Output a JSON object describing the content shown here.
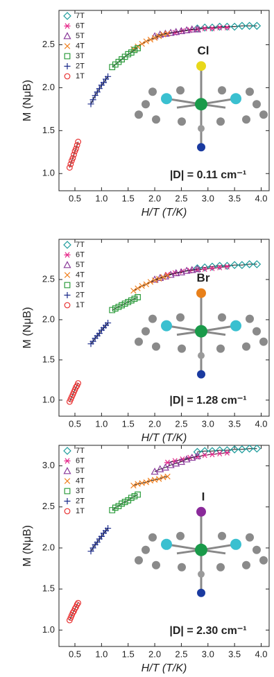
{
  "chart_data": [
    {
      "type": "scatter",
      "xlabel": "H/T (T/K)",
      "ylabel": "M (NμB)",
      "xlim": [
        0.2,
        4.15
      ],
      "ylim": [
        0.8,
        2.9
      ],
      "xticks": [
        0.5,
        {
          "value": 1,
          "label": "1.0"
        },
        1.5,
        {
          "value": 2,
          "label": "2.0"
        },
        2.5,
        {
          "value": 3,
          "label": "3.0"
        },
        3.5,
        {
          "value": 4,
          "label": "4.0"
        }
      ],
      "yticks": [
        {
          "value": 1,
          "label": "1.0"
        },
        1.5,
        {
          "value": 2,
          "label": "2.0"
        },
        2.5
      ],
      "annotations": [
        "Cl",
        "|D| = 0.11 cm⁻¹"
      ],
      "series": [
        {
          "name": "7T",
          "color": "#1a9a9a",
          "marker": "diamond",
          "x": [
            2.8,
            2.94,
            3.08,
            3.22,
            3.36,
            3.5,
            3.64,
            3.78,
            3.92
          ],
          "values": [
            2.69,
            2.7,
            2.7,
            2.71,
            2.71,
            2.71,
            2.72,
            2.72,
            2.72
          ]
        },
        {
          "name": "6T",
          "color": "#e6288a",
          "marker": "asterisk",
          "x": [
            2.24,
            2.38,
            2.52,
            2.66,
            2.8,
            2.94,
            3.08,
            3.22,
            3.36
          ],
          "values": [
            2.63,
            2.64,
            2.66,
            2.67,
            2.68,
            2.69,
            2.69,
            2.7,
            2.7
          ]
        },
        {
          "name": "5T",
          "color": "#8a3a9a",
          "marker": "triangle",
          "x": [
            2.0,
            2.1,
            2.2,
            2.3,
            2.4,
            2.5,
            2.6,
            2.7,
            2.8
          ],
          "values": [
            2.6,
            2.62,
            2.63,
            2.64,
            2.65,
            2.66,
            2.67,
            2.68,
            2.68
          ]
        },
        {
          "name": "4T",
          "color": "#f08020",
          "marker": "x",
          "x": [
            1.6,
            1.68,
            1.76,
            1.84,
            1.92,
            2.0,
            2.08,
            2.16,
            2.24
          ],
          "values": [
            2.45,
            2.48,
            2.51,
            2.54,
            2.56,
            2.58,
            2.6,
            2.62,
            2.63
          ]
        },
        {
          "name": "3T",
          "color": "#2a9a3a",
          "marker": "square",
          "x": [
            1.2,
            1.26,
            1.32,
            1.38,
            1.44,
            1.5,
            1.56,
            1.62,
            1.68
          ],
          "values": [
            2.24,
            2.27,
            2.3,
            2.33,
            2.36,
            2.39,
            2.41,
            2.44,
            2.46
          ]
        },
        {
          "name": "2T",
          "color": "#1a2a8a",
          "marker": "plus",
          "x": [
            0.8,
            0.84,
            0.88,
            0.92,
            0.96,
            1.0,
            1.04,
            1.08,
            1.12
          ],
          "values": [
            1.81,
            1.86,
            1.91,
            1.95,
            1.99,
            2.03,
            2.06,
            2.1,
            2.13
          ]
        },
        {
          "name": "1T",
          "color": "#e83030",
          "marker": "circle",
          "x": [
            0.4,
            0.42,
            0.44,
            0.46,
            0.48,
            0.5,
            0.52,
            0.54,
            0.56
          ],
          "values": [
            1.07,
            1.11,
            1.15,
            1.18,
            1.22,
            1.26,
            1.29,
            1.33,
            1.37
          ]
        }
      ]
    },
    {
      "type": "scatter",
      "xlabel": "H/T (T/K)",
      "ylabel": "M (NμB)",
      "xlim": [
        0.2,
        4.15
      ],
      "ylim": [
        0.8,
        3.0
      ],
      "xticks": [
        0.5,
        {
          "value": 1,
          "label": "1.0"
        },
        1.5,
        {
          "value": 2,
          "label": "2.0"
        },
        2.5,
        {
          "value": 3,
          "label": "3.0"
        },
        3.5,
        {
          "value": 4,
          "label": "4.0"
        }
      ],
      "yticks": [
        {
          "value": 1,
          "label": "1.0"
        },
        1.5,
        {
          "value": 2,
          "label": "2.0"
        },
        2.5
      ],
      "annotations": [
        "Br",
        "|D| = 1.28 cm⁻¹"
      ],
      "series": [
        {
          "name": "7T",
          "color": "#1a9a9a",
          "marker": "diamond",
          "x": [
            2.8,
            2.94,
            3.08,
            3.22,
            3.36,
            3.5,
            3.64,
            3.78,
            3.92
          ],
          "values": [
            2.64,
            2.65,
            2.66,
            2.67,
            2.67,
            2.68,
            2.68,
            2.69,
            2.69
          ]
        },
        {
          "name": "6T",
          "color": "#e6288a",
          "marker": "asterisk",
          "x": [
            2.24,
            2.38,
            2.52,
            2.66,
            2.8,
            2.94,
            3.08,
            3.22,
            3.36
          ],
          "values": [
            2.56,
            2.58,
            2.6,
            2.61,
            2.62,
            2.63,
            2.64,
            2.65,
            2.66
          ]
        },
        {
          "name": "5T",
          "color": "#8a3a9a",
          "marker": "triangle",
          "x": [
            2.0,
            2.1,
            2.2,
            2.3,
            2.4,
            2.5,
            2.6,
            2.7,
            2.8
          ],
          "values": [
            2.5,
            2.52,
            2.54,
            2.56,
            2.58,
            2.59,
            2.61,
            2.62,
            2.63
          ]
        },
        {
          "name": "4T",
          "color": "#f08020",
          "marker": "x",
          "x": [
            1.6,
            1.68,
            1.76,
            1.84,
            1.92,
            2.0,
            2.08,
            2.16,
            2.24
          ],
          "values": [
            2.36,
            2.39,
            2.42,
            2.44,
            2.47,
            2.49,
            2.51,
            2.53,
            2.55
          ]
        },
        {
          "name": "3T",
          "color": "#2a9a3a",
          "marker": "square",
          "x": [
            1.2,
            1.26,
            1.32,
            1.38,
            1.44,
            1.5,
            1.56,
            1.62,
            1.68
          ],
          "values": [
            2.12,
            2.14,
            2.16,
            2.18,
            2.2,
            2.22,
            2.24,
            2.26,
            2.28
          ]
        },
        {
          "name": "2T",
          "color": "#1a2a8a",
          "marker": "plus",
          "x": [
            0.8,
            0.84,
            0.88,
            0.92,
            0.96,
            1.0,
            1.04,
            1.08,
            1.12
          ],
          "values": [
            1.7,
            1.73,
            1.77,
            1.8,
            1.83,
            1.87,
            1.9,
            1.93,
            1.96
          ]
        },
        {
          "name": "1T",
          "color": "#e83030",
          "marker": "circle",
          "x": [
            0.4,
            0.42,
            0.44,
            0.46,
            0.48,
            0.5,
            0.52,
            0.54,
            0.56
          ],
          "values": [
            0.98,
            1.01,
            1.04,
            1.07,
            1.1,
            1.13,
            1.16,
            1.18,
            1.21
          ]
        }
      ]
    },
    {
      "type": "scatter",
      "xlabel": "H/T (T/K)",
      "ylabel": "M (NμB)",
      "xlim": [
        0.2,
        4.15
      ],
      "ylim": [
        0.8,
        3.25
      ],
      "xticks": [
        0.5,
        {
          "value": 1,
          "label": "1.0"
        },
        1.5,
        {
          "value": 2,
          "label": "2.0"
        },
        2.5,
        {
          "value": 3,
          "label": "3.0"
        },
        3.5,
        {
          "value": 4,
          "label": "4.0"
        }
      ],
      "yticks": [
        {
          "value": 1,
          "label": "1.0"
        },
        1.5,
        {
          "value": 2,
          "label": "2.0"
        },
        2.5,
        {
          "value": 3,
          "label": "3.0"
        }
      ],
      "annotations": [
        "I",
        "|D| = 2.30 cm⁻¹"
      ],
      "series": [
        {
          "name": "7T",
          "color": "#1a9a9a",
          "marker": "diamond",
          "x": [
            2.8,
            2.94,
            3.08,
            3.22,
            3.36,
            3.5,
            3.64,
            3.78,
            3.92
          ],
          "values": [
            3.17,
            3.18,
            3.18,
            3.19,
            3.19,
            3.2,
            3.2,
            3.21,
            3.21
          ]
        },
        {
          "name": "6T",
          "color": "#e6288a",
          "marker": "asterisk",
          "x": [
            2.24,
            2.38,
            2.52,
            2.66,
            2.8,
            2.94,
            3.08,
            3.22,
            3.36
          ],
          "values": [
            3.04,
            3.06,
            3.08,
            3.1,
            3.11,
            3.13,
            3.14,
            3.15,
            3.16
          ]
        },
        {
          "name": "5T",
          "color": "#8a3a9a",
          "marker": "triangle",
          "x": [
            2.0,
            2.1,
            2.2,
            2.3,
            2.4,
            2.5,
            2.6,
            2.7,
            2.8
          ],
          "values": [
            2.93,
            2.96,
            2.98,
            3.01,
            3.03,
            3.05,
            3.08,
            3.1,
            3.12
          ]
        },
        {
          "name": "4T",
          "color": "#f08020",
          "marker": "x",
          "x": [
            1.6,
            1.68,
            1.76,
            1.84,
            1.92,
            2.0,
            2.08,
            2.16,
            2.24
          ],
          "values": [
            2.76,
            2.78,
            2.79,
            2.8,
            2.82,
            2.83,
            2.84,
            2.86,
            2.87
          ]
        },
        {
          "name": "3T",
          "color": "#2a9a3a",
          "marker": "square",
          "x": [
            1.2,
            1.26,
            1.32,
            1.38,
            1.44,
            1.5,
            1.56,
            1.62,
            1.68
          ],
          "values": [
            2.46,
            2.49,
            2.51,
            2.54,
            2.56,
            2.58,
            2.61,
            2.63,
            2.65
          ]
        },
        {
          "name": "2T",
          "color": "#1a2a8a",
          "marker": "plus",
          "x": [
            0.8,
            0.84,
            0.88,
            0.92,
            0.96,
            1.0,
            1.04,
            1.08,
            1.12
          ],
          "values": [
            1.96,
            2.0,
            2.04,
            2.07,
            2.11,
            2.14,
            2.18,
            2.21,
            2.24
          ]
        },
        {
          "name": "1T",
          "color": "#e83030",
          "marker": "circle",
          "x": [
            0.4,
            0.42,
            0.44,
            0.46,
            0.48,
            0.5,
            0.52,
            0.54,
            0.56
          ],
          "values": [
            1.12,
            1.15,
            1.18,
            1.21,
            1.23,
            1.26,
            1.28,
            1.31,
            1.33
          ]
        }
      ]
    }
  ]
}
